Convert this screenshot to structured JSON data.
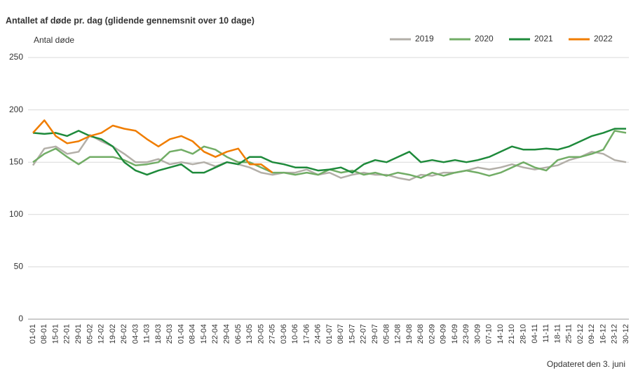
{
  "chart_data": {
    "type": "line",
    "title": "Antallet af døde pr. dag (glidende gennemsnit over 10 dage)",
    "y_label": "Antal døde",
    "note": "Opdateret den 3. juni",
    "categories": [
      "01-01",
      "08-01",
      "15-01",
      "22-01",
      "29-01",
      "05-02",
      "12-02",
      "19-02",
      "26-02",
      "04-03",
      "11-03",
      "18-03",
      "25-03",
      "01-04",
      "08-04",
      "15-04",
      "22-04",
      "29-04",
      "06-05",
      "13-05",
      "20-05",
      "27-05",
      "03-06",
      "10-06",
      "17-06",
      "24-06",
      "01-07",
      "08-07",
      "15-07",
      "22-07",
      "29-07",
      "05-08",
      "12-08",
      "19-08",
      "26-08",
      "02-09",
      "09-09",
      "16-09",
      "23-09",
      "30-09",
      "07-10",
      "14-10",
      "21-10",
      "28-10",
      "04-11",
      "11-11",
      "18-11",
      "25-11",
      "02-12",
      "09-12",
      "16-12",
      "23-12",
      "30-12"
    ],
    "series": [
      {
        "name": "2019",
        "color": "#b3afa8",
        "values": [
          147,
          163,
          165,
          158,
          160,
          176,
          170,
          165,
          158,
          150,
          150,
          153,
          148,
          150,
          148,
          150,
          146,
          150,
          148,
          145,
          140,
          138,
          140,
          140,
          143,
          138,
          140,
          135,
          138,
          140,
          138,
          138,
          135,
          133,
          138,
          137,
          140,
          140,
          142,
          145,
          143,
          145,
          148,
          145,
          143,
          145,
          147,
          152,
          155,
          160,
          158,
          152,
          150
        ]
      },
      {
        "name": "2020",
        "color": "#72ad66",
        "values": [
          150,
          158,
          163,
          155,
          148,
          155,
          155,
          155,
          152,
          147,
          148,
          150,
          160,
          162,
          158,
          165,
          162,
          155,
          150,
          150,
          145,
          140,
          140,
          138,
          140,
          138,
          143,
          140,
          142,
          138,
          140,
          137,
          140,
          138,
          135,
          140,
          137,
          140,
          142,
          140,
          137,
          140,
          145,
          150,
          145,
          142,
          152,
          155,
          155,
          158,
          162,
          180,
          178
        ]
      },
      {
        "name": "2021",
        "color": "#1e8a3b",
        "values": [
          178,
          177,
          178,
          175,
          180,
          175,
          172,
          165,
          150,
          142,
          138,
          142,
          145,
          148,
          140,
          140,
          145,
          150,
          148,
          155,
          155,
          150,
          148,
          145,
          145,
          142,
          143,
          145,
          140,
          148,
          152,
          150,
          155,
          160,
          150,
          152,
          150,
          152,
          150,
          152,
          155,
          160,
          165,
          162,
          162,
          163,
          162,
          165,
          170,
          175,
          178,
          182,
          182
        ]
      },
      {
        "name": "2022",
        "color": "#f07d00",
        "values": [
          178,
          190,
          175,
          168,
          170,
          175,
          178,
          185,
          182,
          180,
          172,
          165,
          172,
          175,
          170,
          160,
          155,
          160,
          163,
          148,
          148,
          140,
          null,
          null,
          null,
          null,
          null,
          null,
          null,
          null,
          null,
          null,
          null,
          null,
          null,
          null,
          null,
          null,
          null,
          null,
          null,
          null,
          null,
          null,
          null,
          null,
          null,
          null,
          null,
          null,
          null,
          null,
          null
        ]
      }
    ],
    "ylim": [
      0,
      250
    ],
    "yticks": [
      0,
      50,
      100,
      150,
      200,
      250
    ],
    "grid": true
  }
}
